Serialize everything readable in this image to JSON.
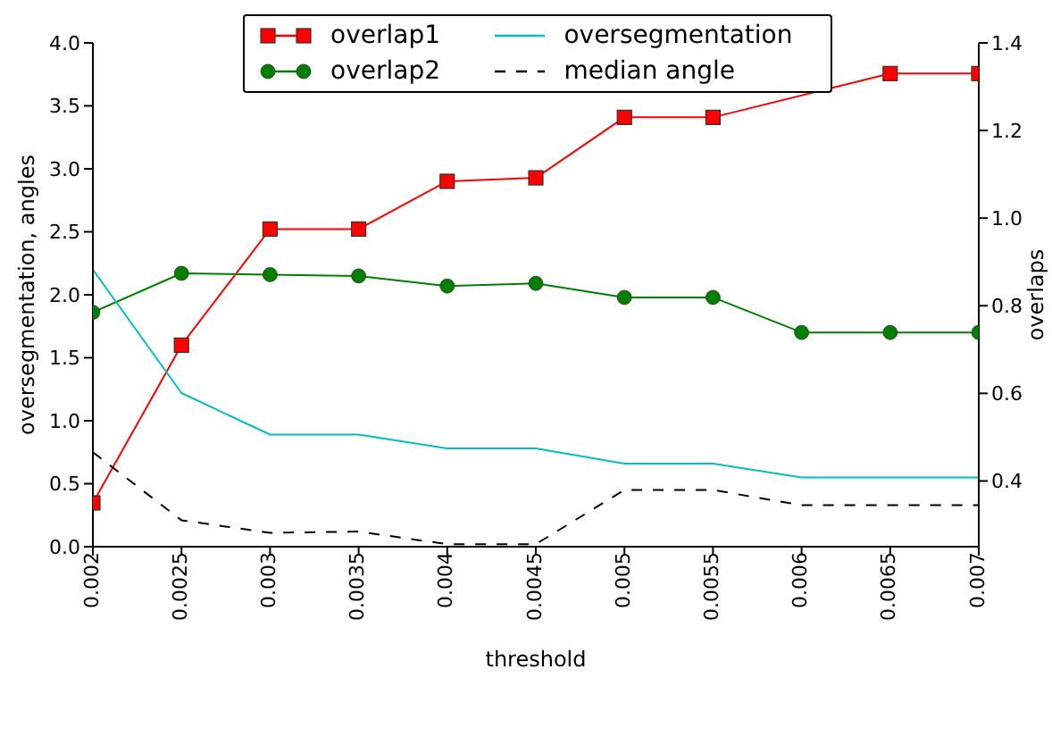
{
  "chart_data": {
    "type": "line",
    "xlabel": "threshold",
    "ylabel": "oversegmentation, angles",
    "y2label": "overlaps",
    "x": [
      0.002,
      0.0025,
      0.003,
      0.0035,
      0.004,
      0.0045,
      0.005,
      0.0055,
      0.006,
      0.0065,
      0.007
    ],
    "series": [
      {
        "name": "overlap1",
        "color": "#ff0000",
        "axis": "y2",
        "marker": "square",
        "line_style": "solid",
        "values": [
          0.35,
          0.71,
          0.975,
          0.975,
          1.084,
          1.092,
          1.23,
          1.23,
          null,
          1.33,
          1.33
        ]
      },
      {
        "name": "overlap2",
        "color": "#007f00",
        "axis": "y2",
        "marker": "circle",
        "line_style": "solid",
        "values": [
          0.785,
          0.874,
          0.871,
          0.868,
          0.845,
          0.851,
          0.819,
          0.819,
          0.739,
          0.739,
          0.739
        ]
      },
      {
        "name": "oversegmentation",
        "color": "#00bfbf",
        "marker": "none",
        "line_style": "solid",
        "values": [
          2.2,
          1.22,
          0.89,
          0.89,
          0.78,
          0.78,
          0.66,
          0.66,
          0.55,
          0.55,
          0.55
        ]
      },
      {
        "name": "median angle",
        "color": "#000000",
        "marker": "none",
        "line_style": "dashed",
        "values": [
          0.75,
          0.21,
          0.11,
          0.12,
          0.02,
          0.02,
          0.45,
          0.45,
          0.33,
          0.33,
          0.33
        ]
      }
    ],
    "xlim": [
      0.002,
      0.007
    ],
    "xticks": [
      0.002,
      0.0025,
      0.003,
      0.0035,
      0.004,
      0.0045,
      0.005,
      0.0055,
      0.006,
      0.0065,
      0.007
    ],
    "ylim": [
      0,
      4
    ],
    "yticks": [
      {
        "value": 0,
        "label": "0.0"
      },
      {
        "value": 0.5,
        "label": "0.5"
      },
      {
        "value": 1,
        "label": "1.0"
      },
      {
        "value": 1.5,
        "label": "1.5"
      },
      {
        "value": 2,
        "label": "2.0"
      },
      {
        "value": 2.5,
        "label": "2.5"
      },
      {
        "value": 3,
        "label": "3.0"
      },
      {
        "value": 3.5,
        "label": "3.5"
      },
      {
        "value": 4,
        "label": "4.0"
      }
    ],
    "y2lim": [
      0.25,
      1.4
    ],
    "y2ticks": [
      0.4,
      0.6,
      0.8,
      {
        "value": 1,
        "label": "1.0"
      },
      1.2,
      1.4
    ],
    "grid": false,
    "legend": "top"
  }
}
